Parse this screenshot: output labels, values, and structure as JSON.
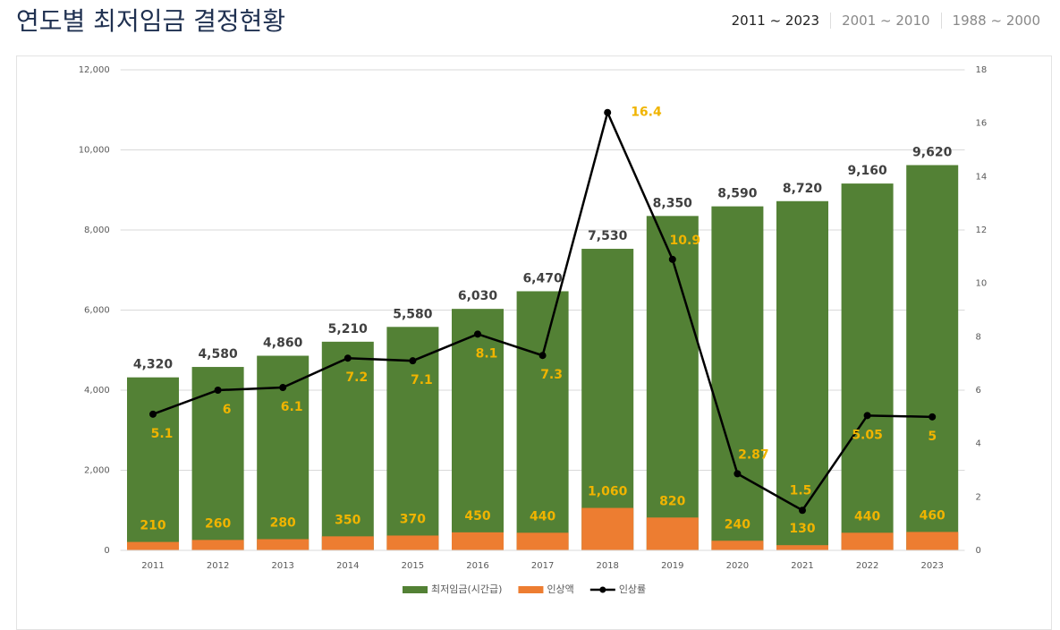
{
  "header": {
    "title": "연도별 최저임금 결정현황",
    "tabs": [
      "2011 ~ 2023",
      "2001 ~ 2010",
      "1988 ~ 2000"
    ]
  },
  "chart_data": {
    "type": "bar",
    "categories": [
      "2011",
      "2012",
      "2013",
      "2014",
      "2015",
      "2016",
      "2017",
      "2018",
      "2019",
      "2020",
      "2021",
      "2022",
      "2023"
    ],
    "series": [
      {
        "name": "최저임금(시간급)",
        "type": "bar",
        "color": "#538135",
        "values": [
          4320,
          4580,
          4860,
          5210,
          5580,
          6030,
          6470,
          7530,
          8350,
          8590,
          8720,
          9160,
          9620
        ],
        "value_labels": [
          "4,320",
          "4,580",
          "4,860",
          "5,210",
          "5,580",
          "6,030",
          "6,470",
          "7,530",
          "8,350",
          "8,590",
          "8,720",
          "9,160",
          "9,620"
        ]
      },
      {
        "name": "인상액",
        "type": "bar",
        "color": "#ed7d31",
        "values": [
          210,
          260,
          280,
          350,
          370,
          450,
          440,
          1060,
          820,
          240,
          130,
          440,
          460
        ],
        "value_labels": [
          "210",
          "260",
          "280",
          "350",
          "370",
          "450",
          "440",
          "1,060",
          "820",
          "240",
          "130",
          "440",
          "460"
        ]
      },
      {
        "name": "인상률",
        "type": "line",
        "axis": "y2",
        "color": "#000000",
        "values": [
          5.1,
          6,
          6.1,
          7.2,
          7.1,
          8.1,
          7.3,
          16.4,
          10.9,
          2.87,
          1.5,
          5.05,
          5
        ]
      }
    ],
    "ylim": [
      0,
      12000
    ],
    "yticks": [
      0,
      {
        "value": 2000,
        "label": "2,000"
      },
      {
        "value": 4000,
        "label": "4,000"
      },
      {
        "value": 6000,
        "label": "6,000"
      },
      {
        "value": 8000,
        "label": "8,000"
      },
      {
        "value": 10000,
        "label": "10,000"
      },
      {
        "value": 12000,
        "label": "12,000"
      }
    ],
    "y2lim": [
      0,
      18
    ],
    "y2ticks": [
      0,
      2,
      4,
      6,
      8,
      10,
      12,
      14,
      16,
      18
    ],
    "grid": true,
    "legend": "bottom"
  }
}
